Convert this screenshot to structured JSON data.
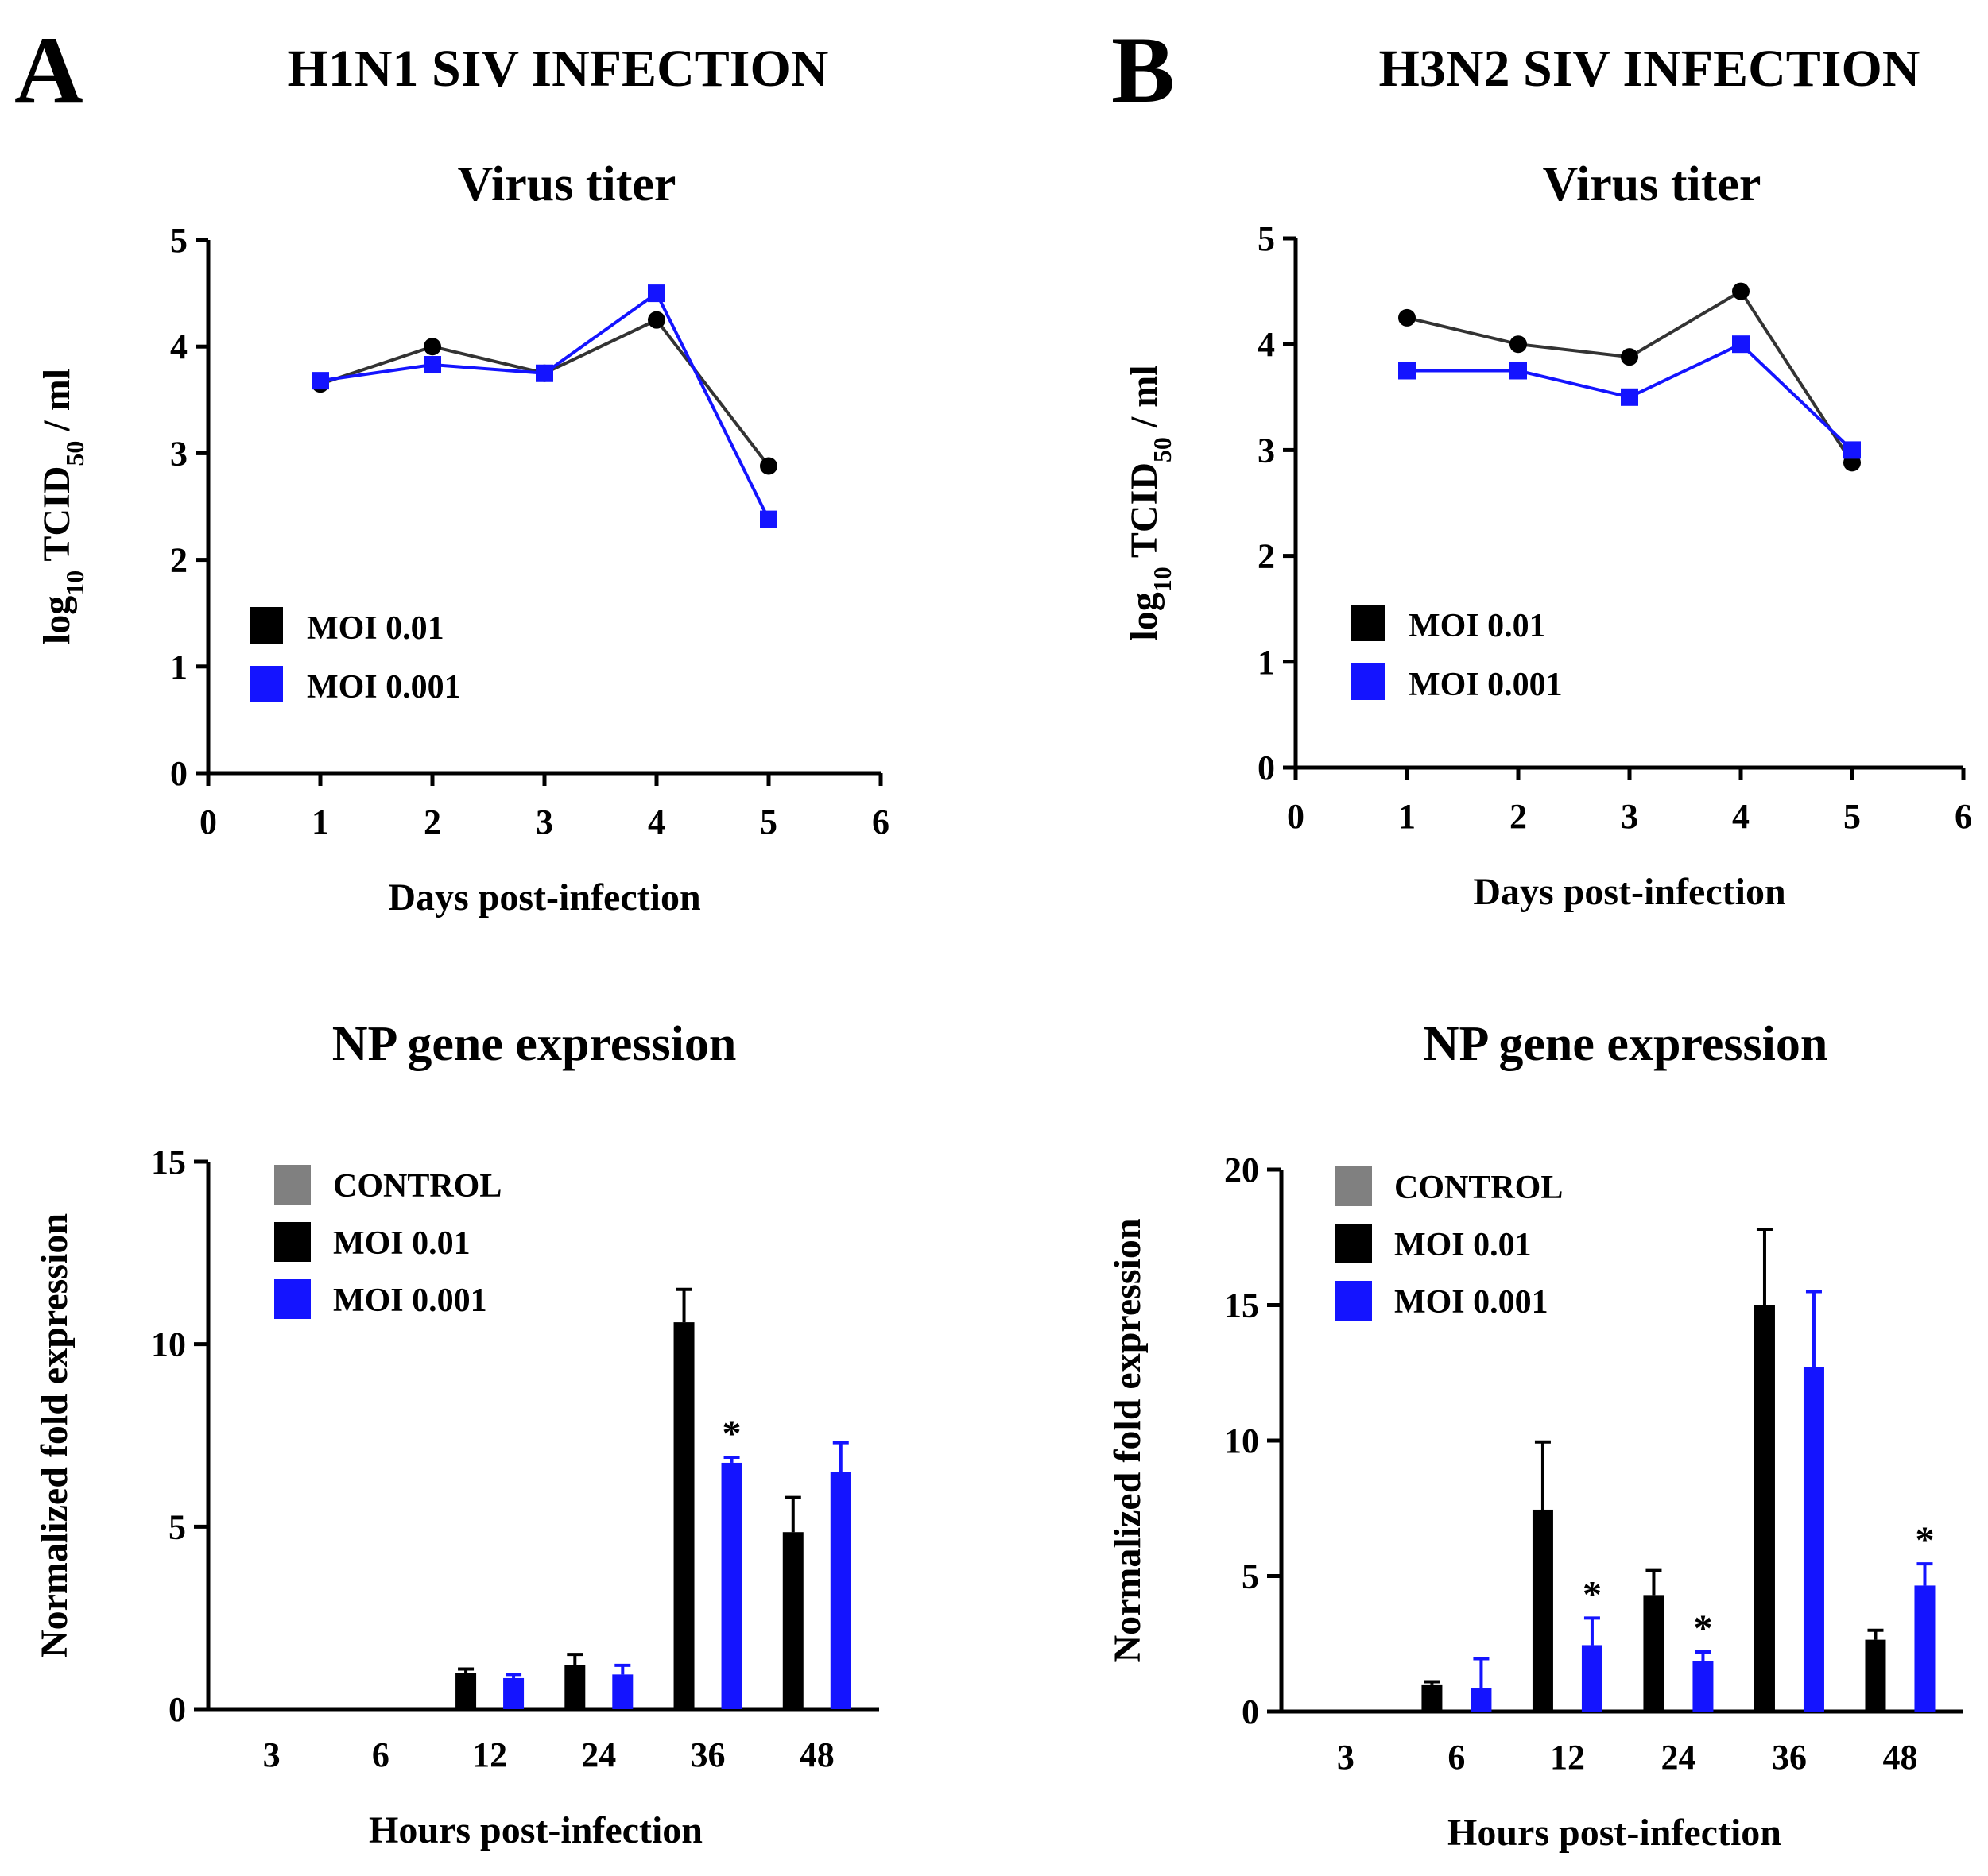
{
  "colors": {
    "black": "#000000",
    "blue": "#1414ff",
    "gray": "#808080",
    "line_black": "#333333"
  },
  "panels": [
    {
      "letter": "A",
      "title": "H1N1 SIV INFECTION"
    },
    {
      "letter": "B",
      "title": "H3N2 SIV INFECTION"
    }
  ],
  "chart_data": [
    {
      "id": "A-titer",
      "type": "line",
      "title": "Virus titer",
      "xlabel": "Days post-infection",
      "ylabel": "log10 TCID50 / ml",
      "ylabel_parts": {
        "pre": "log",
        "sub1": "10",
        "mid": " TCID",
        "sub2": "50",
        "post": " / ml"
      },
      "xlim": [
        0,
        6
      ],
      "ylim": [
        0,
        5
      ],
      "xticks": [
        "0",
        "1",
        "2",
        "3",
        "4",
        "5",
        "6"
      ],
      "yticks": [
        "0",
        "1",
        "2",
        "3",
        "4",
        "5"
      ],
      "x": [
        1,
        2,
        3,
        4,
        5
      ],
      "series": [
        {
          "name": "MOI 0.01",
          "color": "#000000",
          "line": "#333333",
          "marker": "circle",
          "values": [
            3.65,
            4.0,
            3.75,
            4.25,
            2.88
          ]
        },
        {
          "name": "MOI 0.001",
          "color": "#1414ff",
          "line": "#1414ff",
          "marker": "square",
          "values": [
            3.68,
            3.83,
            3.75,
            4.5,
            2.38
          ]
        }
      ],
      "legend": [
        {
          "label": "MOI 0.01",
          "color": "#000000"
        },
        {
          "label": "MOI 0.001",
          "color": "#1414ff"
        }
      ]
    },
    {
      "id": "B-titer",
      "type": "line",
      "title": "Virus titer",
      "xlabel": "Days post-infection",
      "ylabel": "log10 TCID50 / ml",
      "ylabel_parts": {
        "pre": "log",
        "sub1": "10",
        "mid": " TCID",
        "sub2": "50",
        "post": " / ml"
      },
      "xlim": [
        0,
        6
      ],
      "ylim": [
        0,
        5
      ],
      "xticks": [
        "0",
        "1",
        "2",
        "3",
        "4",
        "5",
        "6"
      ],
      "yticks": [
        "0",
        "1",
        "2",
        "3",
        "4",
        "5"
      ],
      "x": [
        1,
        2,
        3,
        4,
        5
      ],
      "series": [
        {
          "name": "MOI 0.01",
          "color": "#000000",
          "line": "#333333",
          "marker": "circle",
          "values": [
            4.25,
            4.0,
            3.88,
            4.5,
            2.88
          ]
        },
        {
          "name": "MOI 0.001",
          "color": "#1414ff",
          "line": "#1414ff",
          "marker": "square",
          "values": [
            3.75,
            3.75,
            3.5,
            4.0,
            3.0
          ]
        }
      ],
      "legend": [
        {
          "label": "MOI 0.01",
          "color": "#000000"
        },
        {
          "label": "MOI 0.001",
          "color": "#1414ff"
        }
      ]
    },
    {
      "id": "A-np",
      "type": "bar",
      "title": "NP gene expression",
      "xlabel": "Hours post-infection",
      "ylabel": "Normalized fold expression",
      "ylim": [
        0,
        15
      ],
      "yticks": [
        "0",
        "5",
        "10",
        "15"
      ],
      "categories": [
        "3",
        "6",
        "12",
        "24",
        "36",
        "48"
      ],
      "series": [
        {
          "name": "CONTROL",
          "color": "#808080",
          "values": [
            0,
            0,
            0,
            0,
            0,
            0
          ],
          "errors": [
            0,
            0,
            0,
            0,
            0,
            0
          ]
        },
        {
          "name": "MOI 0.01",
          "color": "#000000",
          "values": [
            0,
            0,
            1.0,
            1.2,
            10.6,
            4.85
          ],
          "errors": [
            0,
            0,
            0.1,
            0.3,
            0.9,
            0.95
          ]
        },
        {
          "name": "MOI 0.001",
          "color": "#1414ff",
          "values": [
            0,
            0,
            0.85,
            0.95,
            6.75,
            6.5
          ],
          "errors": [
            0,
            0,
            0.1,
            0.25,
            0.15,
            0.8
          ]
        }
      ],
      "significance": [
        {
          "category": "36",
          "series": "MOI 0.001",
          "label": "*"
        }
      ],
      "legend": [
        {
          "label": "CONTROL",
          "color": "#808080"
        },
        {
          "label": "MOI 0.01",
          "color": "#000000"
        },
        {
          "label": "MOI 0.001",
          "color": "#1414ff"
        }
      ]
    },
    {
      "id": "B-np",
      "type": "bar",
      "title": "NP gene expression",
      "xlabel": "Hours post-infection",
      "ylabel": "Normalized fold expression",
      "ylim": [
        0,
        20
      ],
      "yticks": [
        "0",
        "5",
        "10",
        "15",
        "20"
      ],
      "categories": [
        "3",
        "6",
        "12",
        "24",
        "36",
        "48"
      ],
      "series": [
        {
          "name": "CONTROL",
          "color": "#808080",
          "values": [
            0,
            0,
            0,
            0,
            0,
            0
          ],
          "errors": [
            0,
            0,
            0,
            0,
            0,
            0
          ]
        },
        {
          "name": "MOI 0.01",
          "color": "#000000",
          "values": [
            0,
            1.0,
            7.45,
            4.3,
            15.0,
            2.65
          ],
          "errors": [
            0,
            0.1,
            2.5,
            0.9,
            2.8,
            0.35
          ]
        },
        {
          "name": "MOI 0.001",
          "color": "#1414ff",
          "values": [
            0,
            0.85,
            2.45,
            1.85,
            12.7,
            4.65
          ],
          "errors": [
            0,
            1.1,
            1.0,
            0.35,
            2.8,
            0.8
          ]
        }
      ],
      "significance": [
        {
          "category": "12",
          "series": "MOI 0.001",
          "label": "*"
        },
        {
          "category": "24",
          "series": "MOI 0.001",
          "label": "*"
        },
        {
          "category": "48",
          "series": "MOI 0.001",
          "label": "*"
        }
      ],
      "legend": [
        {
          "label": "CONTROL",
          "color": "#808080"
        },
        {
          "label": "MOI 0.01",
          "color": "#000000"
        },
        {
          "label": "MOI 0.001",
          "color": "#1414ff"
        }
      ]
    }
  ]
}
